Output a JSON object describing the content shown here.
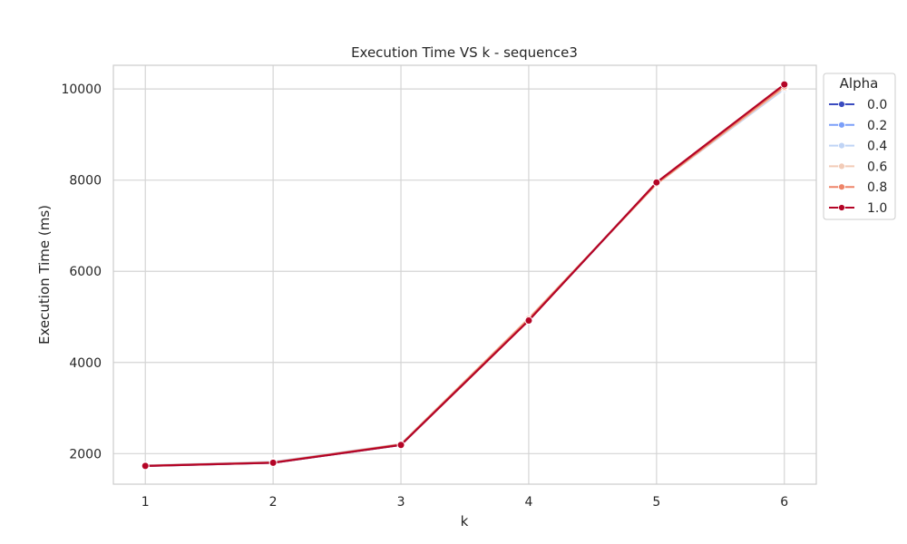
{
  "chart_data": {
    "type": "line",
    "title": "Execution Time VS k - sequence3",
    "xlabel": "k",
    "ylabel": "Execution Time (ms)",
    "x": [
      1,
      2,
      3,
      4,
      5,
      6
    ],
    "xticks": [
      1,
      2,
      3,
      4,
      5,
      6
    ],
    "yticks": [
      2000,
      4000,
      6000,
      8000,
      10000
    ],
    "xlim": [
      0.75,
      6.25
    ],
    "ylim": [
      1330,
      10520
    ],
    "grid": true,
    "legend": {
      "title": "Alpha",
      "placement": "outside-top-right"
    },
    "series": [
      {
        "name": "0.0",
        "color": "#3b4cc0",
        "values": [
          1730,
          1800,
          2190,
          4930,
          7940,
          10020
        ]
      },
      {
        "name": "0.2",
        "color": "#7b9ff9",
        "values": [
          1735,
          1805,
          2195,
          4940,
          7930,
          10010
        ]
      },
      {
        "name": "0.4",
        "color": "#c0d4f5",
        "values": [
          1740,
          1820,
          2210,
          4960,
          7920,
          10000
        ]
      },
      {
        "name": "0.6",
        "color": "#f2cbb7",
        "values": [
          1735,
          1810,
          2205,
          4970,
          7915,
          10030
        ]
      },
      {
        "name": "0.8",
        "color": "#ee8468",
        "values": [
          1732,
          1805,
          2200,
          4950,
          7925,
          10060
        ]
      },
      {
        "name": "1.0",
        "color": "#b40426",
        "values": [
          1730,
          1800,
          2190,
          4920,
          7950,
          10100
        ]
      }
    ]
  }
}
